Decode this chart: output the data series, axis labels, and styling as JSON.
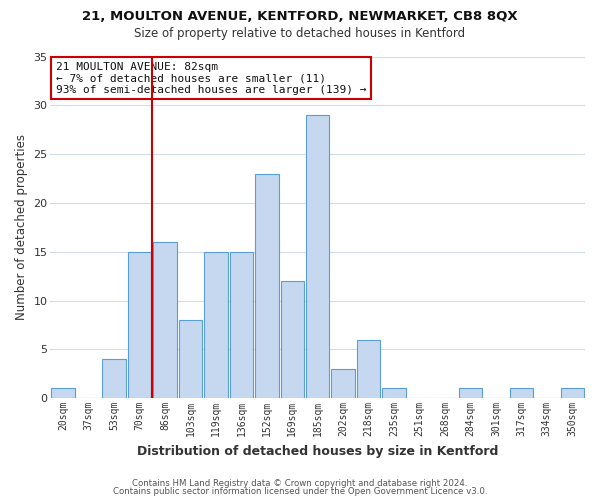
{
  "title": "21, MOULTON AVENUE, KENTFORD, NEWMARKET, CB8 8QX",
  "subtitle": "Size of property relative to detached houses in Kentford",
  "xlabel": "Distribution of detached houses by size in Kentford",
  "ylabel": "Number of detached properties",
  "footnote1": "Contains HM Land Registry data © Crown copyright and database right 2024.",
  "footnote2": "Contains public sector information licensed under the Open Government Licence v3.0.",
  "bin_labels": [
    "20sqm",
    "37sqm",
    "53sqm",
    "70sqm",
    "86sqm",
    "103sqm",
    "119sqm",
    "136sqm",
    "152sqm",
    "169sqm",
    "185sqm",
    "202sqm",
    "218sqm",
    "235sqm",
    "251sqm",
    "268sqm",
    "284sqm",
    "301sqm",
    "317sqm",
    "334sqm",
    "350sqm"
  ],
  "bar_values": [
    1,
    0,
    4,
    15,
    16,
    8,
    15,
    15,
    23,
    12,
    29,
    3,
    6,
    1,
    0,
    0,
    1,
    0,
    1,
    0,
    1
  ],
  "bar_color": "#c5d8f0",
  "bar_edge_color": "#5a9fd4",
  "vline_x_index": 4,
  "vline_color": "#cc0000",
  "annotation_title": "21 MOULTON AVENUE: 82sqm",
  "annotation_line1": "← 7% of detached houses are smaller (11)",
  "annotation_line2": "93% of semi-detached houses are larger (139) →",
  "annotation_box_color": "#ffffff",
  "annotation_box_edge": "#cc0000",
  "ylim": [
    0,
    35
  ],
  "yticks": [
    0,
    5,
    10,
    15,
    20,
    25,
    30,
    35
  ],
  "background_color": "#ffffff",
  "grid_color": "#d0dce8"
}
